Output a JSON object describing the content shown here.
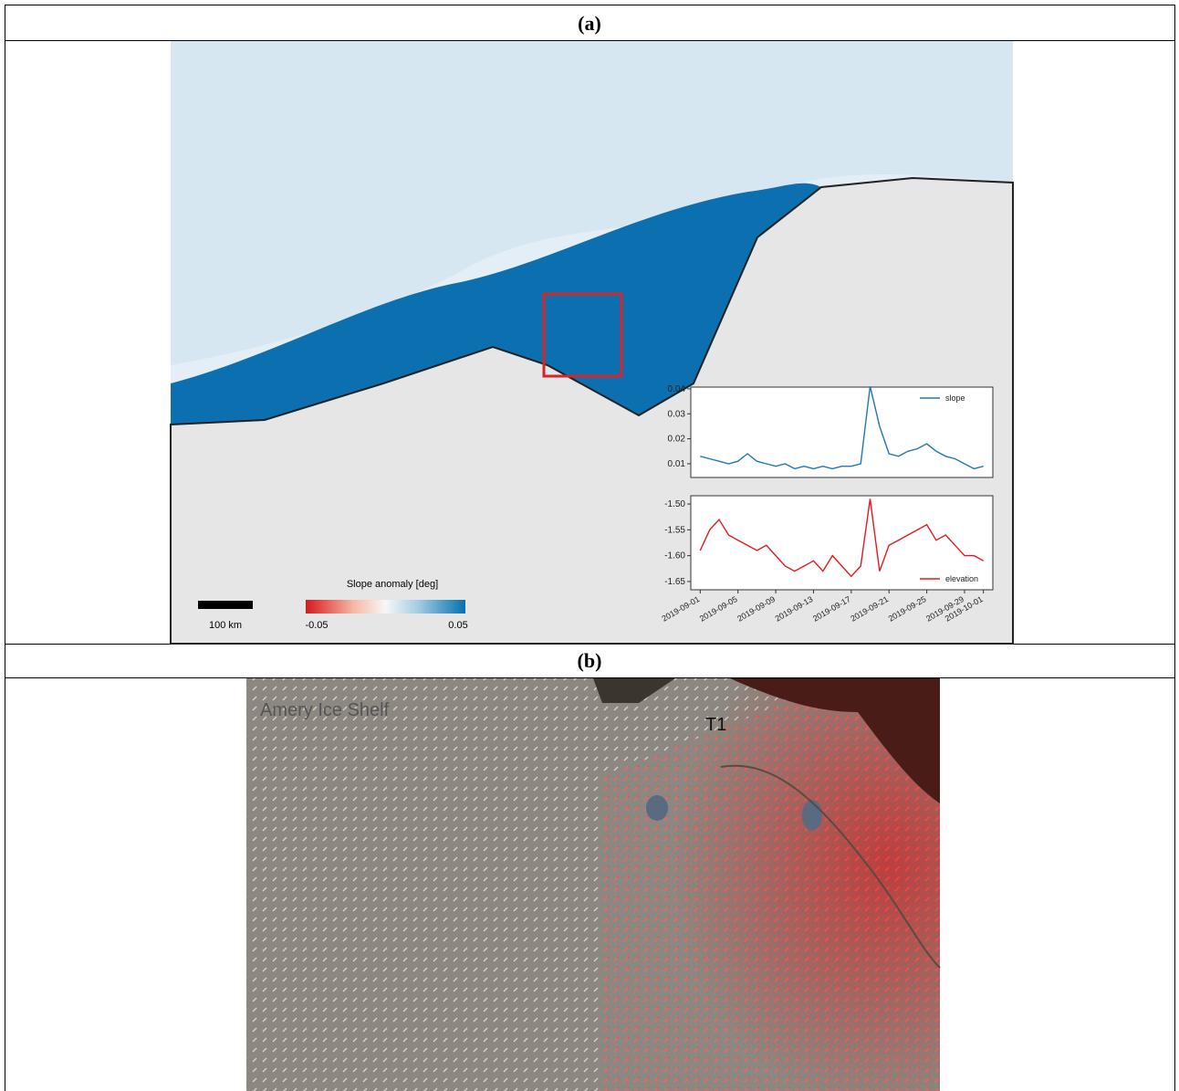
{
  "panels": [
    {
      "label": "(a)",
      "scale_bar": "100 km",
      "colorbar": {
        "title": "Slope anomaly [deg]",
        "min_label": "-0.05",
        "max_label": "0.05"
      }
    },
    {
      "label": "(b)",
      "annotations": [
        "T1",
        "Amery Ice Shelf"
      ]
    }
  ],
  "chart_data": [
    {
      "type": "line",
      "x": [
        "2019-09-01",
        "2019-09-02",
        "2019-09-03",
        "2019-09-04",
        "2019-09-05",
        "2019-09-06",
        "2019-09-07",
        "2019-09-08",
        "2019-09-09",
        "2019-09-10",
        "2019-09-11",
        "2019-09-12",
        "2019-09-13",
        "2019-09-14",
        "2019-09-15",
        "2019-09-16",
        "2019-09-17",
        "2019-09-18",
        "2019-09-19",
        "2019-09-20",
        "2019-09-21",
        "2019-09-22",
        "2019-09-23",
        "2019-09-24",
        "2019-09-25",
        "2019-09-26",
        "2019-09-27",
        "2019-09-28",
        "2019-09-29",
        "2019-09-30",
        "2019-10-01"
      ],
      "series": [
        {
          "name": "slope",
          "color": "#1f77b4",
          "values": [
            0.013,
            0.012,
            0.011,
            0.01,
            0.011,
            0.014,
            0.011,
            0.01,
            0.009,
            0.01,
            0.008,
            0.009,
            0.008,
            0.009,
            0.008,
            0.009,
            0.009,
            0.01,
            0.041,
            0.025,
            0.014,
            0.013,
            0.015,
            0.016,
            0.018,
            0.015,
            0.013,
            0.012,
            0.01,
            0.008,
            0.009
          ]
        }
      ],
      "xlim": [
        "2019-08-31",
        "2019-10-02"
      ],
      "ylim": [
        0.0045,
        0.0407
      ],
      "yticks": [
        0.01,
        0.02,
        0.03,
        0.04
      ],
      "legend": "upper right"
    },
    {
      "type": "line",
      "x": [
        "2019-09-01",
        "2019-09-02",
        "2019-09-03",
        "2019-09-04",
        "2019-09-05",
        "2019-09-06",
        "2019-09-07",
        "2019-09-08",
        "2019-09-09",
        "2019-09-10",
        "2019-09-11",
        "2019-09-12",
        "2019-09-13",
        "2019-09-14",
        "2019-09-15",
        "2019-09-16",
        "2019-09-17",
        "2019-09-18",
        "2019-09-19",
        "2019-09-20",
        "2019-09-21",
        "2019-09-22",
        "2019-09-23",
        "2019-09-24",
        "2019-09-25",
        "2019-09-26",
        "2019-09-27",
        "2019-09-28",
        "2019-09-29",
        "2019-09-30",
        "2019-10-01"
      ],
      "series": [
        {
          "name": "elevation",
          "color": "#e41a1c",
          "values": [
            -1.59,
            -1.55,
            -1.53,
            -1.56,
            -1.57,
            -1.58,
            -1.59,
            -1.58,
            -1.6,
            -1.62,
            -1.63,
            -1.62,
            -1.61,
            -1.63,
            -1.6,
            -1.62,
            -1.64,
            -1.62,
            -1.49,
            -1.63,
            -1.58,
            -1.57,
            -1.56,
            -1.55,
            -1.54,
            -1.57,
            -1.56,
            -1.58,
            -1.6,
            -1.6,
            -1.61
          ]
        }
      ],
      "xlim": [
        "2019-08-31",
        "2019-10-02"
      ],
      "xticks": [
        "2019-09-01",
        "2019-09-05",
        "2019-09-09",
        "2019-09-13",
        "2019-09-17",
        "2019-09-21",
        "2019-09-25",
        "2019-09-29",
        "2019-10-01"
      ],
      "ylim": [
        -1.666,
        -1.484
      ],
      "yticks": [
        {
          "value": -1.5,
          "label": "-1.50"
        },
        {
          "value": -1.55,
          "label": "-1.55"
        },
        {
          "value": -1.6,
          "label": "-1.60"
        },
        {
          "value": -1.65,
          "label": "-1.65"
        }
      ],
      "legend": "lower right"
    }
  ]
}
